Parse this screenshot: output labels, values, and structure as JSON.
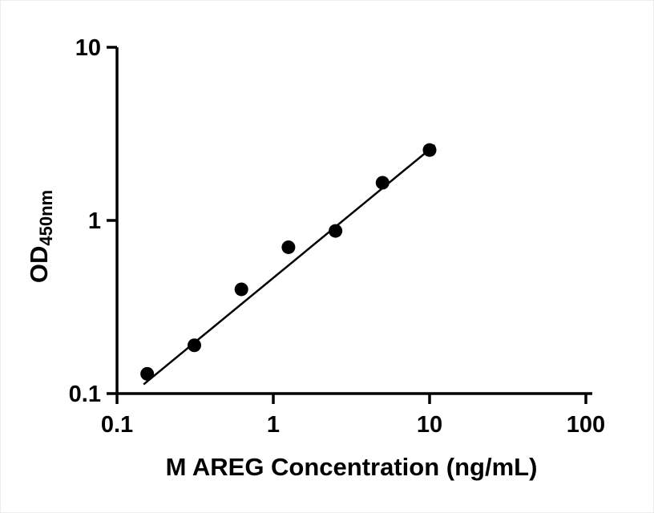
{
  "figure": {
    "background": "#ffffff",
    "accent_color": "#000000"
  },
  "chart_data": {
    "type": "scatter",
    "title": "",
    "xlabel": "M AREG Concentration (ng/mL)",
    "ylabel": "OD",
    "ylabel_subscript": "450nm",
    "xscale": "log",
    "yscale": "log",
    "xlim": [
      0.1,
      100
    ],
    "ylim": [
      0.1,
      10
    ],
    "xticks": [
      0.1,
      1,
      10,
      100
    ],
    "xtick_labels": [
      "0.1",
      "1",
      "10",
      "100"
    ],
    "yticks": [
      0.1,
      1,
      10
    ],
    "ytick_labels": [
      "0.1",
      "1",
      "10"
    ],
    "grid": false,
    "legend": "none",
    "marker_color": "#000000",
    "line_color": "#000000",
    "points": [
      {
        "x": 0.156,
        "y": 0.13
      },
      {
        "x": 0.3125,
        "y": 0.19
      },
      {
        "x": 0.625,
        "y": 0.4
      },
      {
        "x": 1.25,
        "y": 0.7
      },
      {
        "x": 2.5,
        "y": 0.87
      },
      {
        "x": 5.0,
        "y": 1.65
      },
      {
        "x": 10.0,
        "y": 2.55
      }
    ],
    "trend_line": {
      "x1": 0.148,
      "y1": 0.113,
      "x2": 10.8,
      "y2": 2.72
    }
  }
}
